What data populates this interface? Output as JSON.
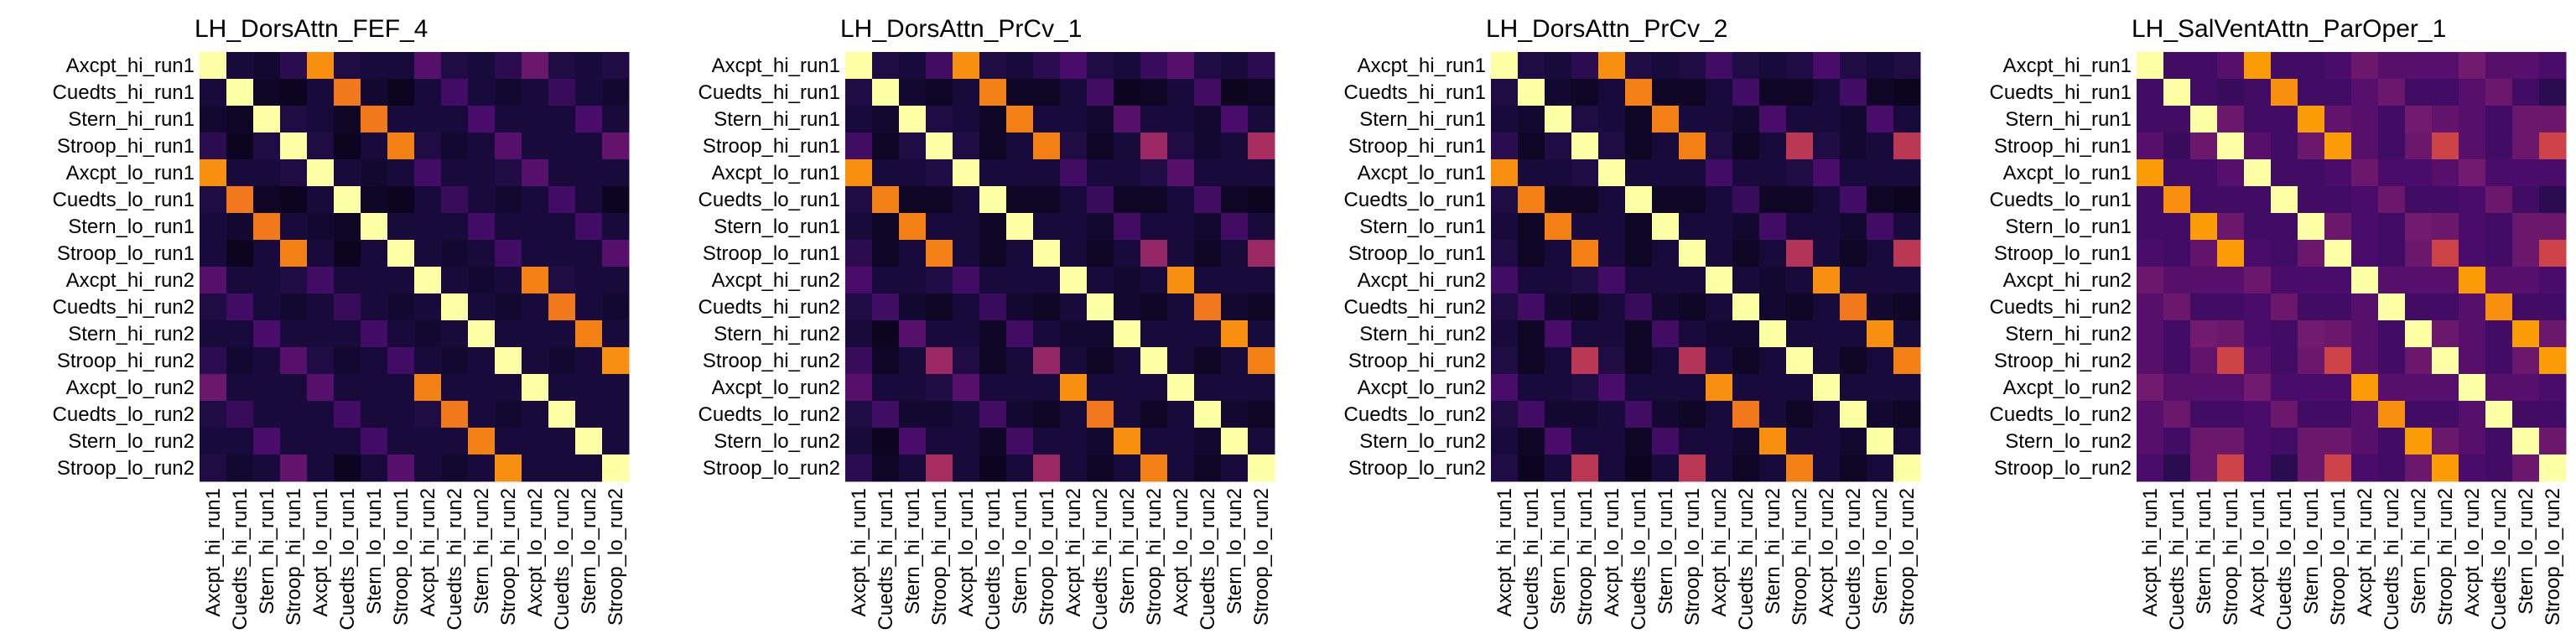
{
  "chart_data": [
    {
      "type": "heatmap",
      "title": "LH_DorsAttn_FEF_4",
      "labels": [
        "Axcpt_hi_run1",
        "Cuedts_hi_run1",
        "Stern_hi_run1",
        "Stroop_hi_run1",
        "Axcpt_lo_run1",
        "Cuedts_lo_run1",
        "Stern_lo_run1",
        "Stroop_lo_run1",
        "Axcpt_hi_run2",
        "Cuedts_hi_run2",
        "Stern_hi_run2",
        "Stroop_hi_run2",
        "Axcpt_lo_run2",
        "Cuedts_lo_run2",
        "Stern_lo_run2",
        "Stroop_lo_run2"
      ],
      "values": [
        [
          1.0,
          0.1,
          0.08,
          0.15,
          0.75,
          0.12,
          0.1,
          0.1,
          0.25,
          0.12,
          0.1,
          0.15,
          0.3,
          0.12,
          0.1,
          0.12
        ],
        [
          0.1,
          1.0,
          0.06,
          0.05,
          0.1,
          0.7,
          0.08,
          0.05,
          0.1,
          0.2,
          0.1,
          0.08,
          0.1,
          0.18,
          0.1,
          0.08
        ],
        [
          0.08,
          0.06,
          1.0,
          0.12,
          0.1,
          0.06,
          0.7,
          0.1,
          0.1,
          0.1,
          0.22,
          0.1,
          0.1,
          0.1,
          0.22,
          0.1
        ],
        [
          0.15,
          0.05,
          0.12,
          1.0,
          0.12,
          0.05,
          0.1,
          0.72,
          0.12,
          0.08,
          0.1,
          0.25,
          0.1,
          0.1,
          0.1,
          0.28
        ],
        [
          0.75,
          0.1,
          0.1,
          0.12,
          1.0,
          0.1,
          0.08,
          0.1,
          0.2,
          0.1,
          0.1,
          0.12,
          0.25,
          0.1,
          0.1,
          0.1
        ],
        [
          0.12,
          0.7,
          0.06,
          0.05,
          0.1,
          1.0,
          0.06,
          0.05,
          0.1,
          0.18,
          0.1,
          0.08,
          0.1,
          0.2,
          0.1,
          0.05
        ],
        [
          0.1,
          0.08,
          0.7,
          0.1,
          0.08,
          0.06,
          1.0,
          0.1,
          0.1,
          0.1,
          0.2,
          0.1,
          0.1,
          0.1,
          0.2,
          0.1
        ],
        [
          0.1,
          0.05,
          0.1,
          0.72,
          0.1,
          0.05,
          0.1,
          1.0,
          0.1,
          0.08,
          0.1,
          0.2,
          0.1,
          0.1,
          0.1,
          0.25
        ],
        [
          0.25,
          0.1,
          0.1,
          0.12,
          0.2,
          0.1,
          0.1,
          0.1,
          1.0,
          0.1,
          0.08,
          0.1,
          0.72,
          0.12,
          0.1,
          0.1
        ],
        [
          0.12,
          0.2,
          0.1,
          0.08,
          0.1,
          0.18,
          0.1,
          0.08,
          0.1,
          1.0,
          0.1,
          0.08,
          0.1,
          0.7,
          0.1,
          0.08
        ],
        [
          0.1,
          0.1,
          0.22,
          0.1,
          0.1,
          0.1,
          0.2,
          0.1,
          0.08,
          0.1,
          1.0,
          0.1,
          0.1,
          0.1,
          0.72,
          0.1
        ],
        [
          0.15,
          0.08,
          0.1,
          0.25,
          0.12,
          0.08,
          0.1,
          0.2,
          0.1,
          0.08,
          0.1,
          1.0,
          0.1,
          0.08,
          0.1,
          0.75
        ],
        [
          0.3,
          0.1,
          0.1,
          0.1,
          0.25,
          0.1,
          0.1,
          0.1,
          0.72,
          0.1,
          0.1,
          0.1,
          1.0,
          0.1,
          0.1,
          0.1
        ],
        [
          0.12,
          0.18,
          0.1,
          0.1,
          0.1,
          0.2,
          0.1,
          0.1,
          0.12,
          0.7,
          0.1,
          0.08,
          0.1,
          1.0,
          0.1,
          0.1
        ],
        [
          0.1,
          0.1,
          0.22,
          0.1,
          0.1,
          0.1,
          0.2,
          0.1,
          0.1,
          0.1,
          0.72,
          0.1,
          0.1,
          0.1,
          1.0,
          0.1
        ],
        [
          0.12,
          0.08,
          0.1,
          0.28,
          0.1,
          0.05,
          0.1,
          0.25,
          0.1,
          0.08,
          0.1,
          0.75,
          0.1,
          0.1,
          0.1,
          1.0
        ]
      ]
    },
    {
      "type": "heatmap",
      "title": "LH_DorsAttn_PrCv_1",
      "labels": [
        "Axcpt_hi_run1",
        "Cuedts_hi_run1",
        "Stern_hi_run1",
        "Stroop_hi_run1",
        "Axcpt_lo_run1",
        "Cuedts_lo_run1",
        "Stern_lo_run1",
        "Stroop_lo_run1",
        "Axcpt_hi_run2",
        "Cuedts_hi_run2",
        "Stern_hi_run2",
        "Stroop_hi_run2",
        "Axcpt_lo_run2",
        "Cuedts_lo_run2",
        "Stern_lo_run2",
        "Stroop_lo_run2"
      ],
      "values": [
        [
          1.0,
          0.12,
          0.1,
          0.2,
          0.75,
          0.12,
          0.1,
          0.15,
          0.22,
          0.12,
          0.1,
          0.18,
          0.25,
          0.12,
          0.1,
          0.15
        ],
        [
          0.12,
          1.0,
          0.08,
          0.06,
          0.1,
          0.72,
          0.06,
          0.06,
          0.1,
          0.2,
          0.05,
          0.06,
          0.1,
          0.2,
          0.05,
          0.06
        ],
        [
          0.1,
          0.08,
          1.0,
          0.12,
          0.1,
          0.06,
          0.72,
          0.1,
          0.1,
          0.08,
          0.25,
          0.1,
          0.1,
          0.08,
          0.22,
          0.1
        ],
        [
          0.2,
          0.06,
          0.12,
          1.0,
          0.12,
          0.06,
          0.1,
          0.72,
          0.12,
          0.06,
          0.1,
          0.42,
          0.12,
          0.08,
          0.1,
          0.45
        ],
        [
          0.75,
          0.1,
          0.1,
          0.12,
          1.0,
          0.1,
          0.1,
          0.1,
          0.2,
          0.1,
          0.1,
          0.12,
          0.25,
          0.1,
          0.1,
          0.1
        ],
        [
          0.12,
          0.72,
          0.06,
          0.06,
          0.1,
          1.0,
          0.06,
          0.06,
          0.1,
          0.18,
          0.06,
          0.06,
          0.1,
          0.2,
          0.06,
          0.05
        ],
        [
          0.1,
          0.06,
          0.72,
          0.1,
          0.1,
          0.06,
          1.0,
          0.1,
          0.1,
          0.08,
          0.2,
          0.1,
          0.1,
          0.08,
          0.2,
          0.1
        ],
        [
          0.15,
          0.06,
          0.1,
          0.72,
          0.1,
          0.06,
          0.1,
          1.0,
          0.1,
          0.06,
          0.1,
          0.4,
          0.1,
          0.06,
          0.1,
          0.42
        ],
        [
          0.22,
          0.1,
          0.1,
          0.12,
          0.2,
          0.1,
          0.1,
          0.1,
          1.0,
          0.1,
          0.08,
          0.1,
          0.75,
          0.1,
          0.1,
          0.1
        ],
        [
          0.12,
          0.2,
          0.08,
          0.06,
          0.1,
          0.18,
          0.08,
          0.06,
          0.1,
          1.0,
          0.08,
          0.06,
          0.1,
          0.7,
          0.08,
          0.06
        ],
        [
          0.1,
          0.05,
          0.25,
          0.1,
          0.1,
          0.06,
          0.2,
          0.1,
          0.08,
          0.08,
          1.0,
          0.1,
          0.1,
          0.1,
          0.75,
          0.1
        ],
        [
          0.18,
          0.06,
          0.1,
          0.42,
          0.12,
          0.06,
          0.1,
          0.4,
          0.1,
          0.06,
          0.1,
          1.0,
          0.1,
          0.06,
          0.1,
          0.72
        ],
        [
          0.25,
          0.1,
          0.1,
          0.12,
          0.25,
          0.1,
          0.1,
          0.1,
          0.75,
          0.1,
          0.1,
          0.1,
          1.0,
          0.1,
          0.1,
          0.1
        ],
        [
          0.12,
          0.2,
          0.08,
          0.08,
          0.1,
          0.2,
          0.08,
          0.06,
          0.1,
          0.7,
          0.1,
          0.06,
          0.1,
          1.0,
          0.08,
          0.06
        ],
        [
          0.1,
          0.05,
          0.22,
          0.1,
          0.1,
          0.06,
          0.2,
          0.1,
          0.1,
          0.08,
          0.75,
          0.1,
          0.1,
          0.08,
          1.0,
          0.1
        ],
        [
          0.15,
          0.06,
          0.1,
          0.45,
          0.1,
          0.05,
          0.1,
          0.42,
          0.1,
          0.06,
          0.1,
          0.72,
          0.1,
          0.06,
          0.1,
          1.0
        ]
      ]
    },
    {
      "type": "heatmap",
      "title": "LH_DorsAttn_PrCv_2",
      "labels": [
        "Axcpt_hi_run1",
        "Cuedts_hi_run1",
        "Stern_hi_run1",
        "Stroop_hi_run1",
        "Axcpt_lo_run1",
        "Cuedts_lo_run1",
        "Stern_lo_run1",
        "Stroop_lo_run1",
        "Axcpt_hi_run2",
        "Cuedts_hi_run2",
        "Stern_hi_run2",
        "Stroop_hi_run2",
        "Axcpt_lo_run2",
        "Cuedts_lo_run2",
        "Stern_lo_run2",
        "Stroop_lo_run2"
      ],
      "values": [
        [
          1.0,
          0.12,
          0.1,
          0.15,
          0.75,
          0.12,
          0.1,
          0.12,
          0.2,
          0.12,
          0.1,
          0.12,
          0.22,
          0.12,
          0.1,
          0.12
        ],
        [
          0.12,
          1.0,
          0.08,
          0.06,
          0.1,
          0.72,
          0.06,
          0.06,
          0.1,
          0.2,
          0.06,
          0.06,
          0.1,
          0.2,
          0.06,
          0.05
        ],
        [
          0.1,
          0.08,
          1.0,
          0.12,
          0.1,
          0.06,
          0.72,
          0.1,
          0.1,
          0.08,
          0.22,
          0.1,
          0.1,
          0.08,
          0.22,
          0.1
        ],
        [
          0.15,
          0.06,
          0.12,
          1.0,
          0.12,
          0.06,
          0.1,
          0.72,
          0.12,
          0.06,
          0.1,
          0.5,
          0.12,
          0.08,
          0.1,
          0.5
        ],
        [
          0.75,
          0.1,
          0.1,
          0.12,
          1.0,
          0.1,
          0.1,
          0.1,
          0.2,
          0.1,
          0.1,
          0.12,
          0.22,
          0.1,
          0.1,
          0.1
        ],
        [
          0.12,
          0.72,
          0.06,
          0.06,
          0.1,
          1.0,
          0.06,
          0.06,
          0.1,
          0.18,
          0.06,
          0.06,
          0.1,
          0.2,
          0.06,
          0.05
        ],
        [
          0.1,
          0.06,
          0.72,
          0.1,
          0.1,
          0.06,
          1.0,
          0.1,
          0.1,
          0.08,
          0.2,
          0.1,
          0.1,
          0.08,
          0.2,
          0.1
        ],
        [
          0.12,
          0.06,
          0.1,
          0.72,
          0.1,
          0.06,
          0.1,
          1.0,
          0.1,
          0.06,
          0.1,
          0.48,
          0.1,
          0.06,
          0.1,
          0.5
        ],
        [
          0.2,
          0.1,
          0.1,
          0.12,
          0.2,
          0.1,
          0.1,
          0.1,
          1.0,
          0.1,
          0.08,
          0.1,
          0.75,
          0.1,
          0.1,
          0.1
        ],
        [
          0.12,
          0.2,
          0.08,
          0.06,
          0.1,
          0.18,
          0.08,
          0.06,
          0.1,
          1.0,
          0.08,
          0.06,
          0.1,
          0.7,
          0.08,
          0.06
        ],
        [
          0.1,
          0.06,
          0.22,
          0.1,
          0.1,
          0.06,
          0.2,
          0.1,
          0.08,
          0.08,
          1.0,
          0.1,
          0.1,
          0.1,
          0.75,
          0.1
        ],
        [
          0.12,
          0.06,
          0.1,
          0.5,
          0.12,
          0.06,
          0.1,
          0.48,
          0.1,
          0.06,
          0.1,
          1.0,
          0.1,
          0.06,
          0.1,
          0.72
        ],
        [
          0.22,
          0.1,
          0.1,
          0.12,
          0.22,
          0.1,
          0.1,
          0.1,
          0.75,
          0.1,
          0.1,
          0.1,
          1.0,
          0.1,
          0.1,
          0.1
        ],
        [
          0.12,
          0.2,
          0.08,
          0.08,
          0.1,
          0.2,
          0.08,
          0.06,
          0.1,
          0.7,
          0.1,
          0.06,
          0.1,
          1.0,
          0.08,
          0.06
        ],
        [
          0.1,
          0.06,
          0.22,
          0.1,
          0.1,
          0.06,
          0.2,
          0.1,
          0.1,
          0.08,
          0.75,
          0.1,
          0.1,
          0.08,
          1.0,
          0.1
        ],
        [
          0.12,
          0.05,
          0.1,
          0.5,
          0.1,
          0.05,
          0.1,
          0.5,
          0.1,
          0.06,
          0.1,
          0.72,
          0.1,
          0.06,
          0.1,
          1.0
        ]
      ]
    },
    {
      "type": "heatmap",
      "title": "LH_SalVentAttn_ParOper_1",
      "labels": [
        "Axcpt_hi_run1",
        "Cuedts_hi_run1",
        "Stern_hi_run1",
        "Stroop_hi_run1",
        "Axcpt_lo_run1",
        "Cuedts_lo_run1",
        "Stern_lo_run1",
        "Stroop_lo_run1",
        "Axcpt_hi_run2",
        "Cuedts_hi_run2",
        "Stern_hi_run2",
        "Stroop_hi_run2",
        "Axcpt_lo_run2",
        "Cuedts_lo_run2",
        "Stern_lo_run2",
        "Stroop_lo_run2"
      ],
      "values": [
        [
          1.0,
          0.2,
          0.2,
          0.25,
          0.78,
          0.2,
          0.2,
          0.22,
          0.3,
          0.25,
          0.25,
          0.25,
          0.32,
          0.25,
          0.25,
          0.22
        ],
        [
          0.2,
          1.0,
          0.2,
          0.18,
          0.2,
          0.75,
          0.2,
          0.2,
          0.25,
          0.3,
          0.2,
          0.2,
          0.25,
          0.3,
          0.2,
          0.15
        ],
        [
          0.2,
          0.2,
          1.0,
          0.3,
          0.2,
          0.2,
          0.78,
          0.28,
          0.25,
          0.2,
          0.32,
          0.28,
          0.25,
          0.2,
          0.3,
          0.3
        ],
        [
          0.25,
          0.18,
          0.3,
          1.0,
          0.25,
          0.2,
          0.3,
          0.78,
          0.25,
          0.2,
          0.3,
          0.55,
          0.25,
          0.2,
          0.3,
          0.55
        ],
        [
          0.78,
          0.2,
          0.2,
          0.25,
          1.0,
          0.2,
          0.2,
          0.22,
          0.3,
          0.22,
          0.22,
          0.25,
          0.32,
          0.22,
          0.22,
          0.22
        ],
        [
          0.2,
          0.75,
          0.2,
          0.2,
          0.2,
          1.0,
          0.2,
          0.2,
          0.22,
          0.3,
          0.2,
          0.2,
          0.22,
          0.3,
          0.2,
          0.15
        ],
        [
          0.2,
          0.2,
          0.78,
          0.3,
          0.2,
          0.2,
          1.0,
          0.3,
          0.22,
          0.2,
          0.32,
          0.3,
          0.22,
          0.2,
          0.3,
          0.3
        ],
        [
          0.22,
          0.2,
          0.28,
          0.78,
          0.22,
          0.2,
          0.3,
          1.0,
          0.22,
          0.2,
          0.3,
          0.55,
          0.22,
          0.2,
          0.3,
          0.55
        ],
        [
          0.3,
          0.25,
          0.25,
          0.25,
          0.3,
          0.22,
          0.22,
          0.22,
          1.0,
          0.25,
          0.25,
          0.25,
          0.78,
          0.25,
          0.25,
          0.22
        ],
        [
          0.25,
          0.3,
          0.2,
          0.2,
          0.22,
          0.3,
          0.2,
          0.2,
          0.25,
          1.0,
          0.2,
          0.2,
          0.25,
          0.75,
          0.2,
          0.2
        ],
        [
          0.25,
          0.2,
          0.32,
          0.3,
          0.22,
          0.2,
          0.32,
          0.3,
          0.25,
          0.2,
          1.0,
          0.3,
          0.25,
          0.2,
          0.78,
          0.3
        ],
        [
          0.25,
          0.2,
          0.28,
          0.55,
          0.25,
          0.2,
          0.3,
          0.55,
          0.25,
          0.2,
          0.3,
          1.0,
          0.25,
          0.2,
          0.3,
          0.78
        ],
        [
          0.32,
          0.25,
          0.25,
          0.25,
          0.32,
          0.22,
          0.22,
          0.22,
          0.78,
          0.25,
          0.25,
          0.25,
          1.0,
          0.25,
          0.25,
          0.22
        ],
        [
          0.25,
          0.3,
          0.2,
          0.2,
          0.22,
          0.3,
          0.2,
          0.2,
          0.25,
          0.75,
          0.2,
          0.2,
          0.25,
          1.0,
          0.2,
          0.2
        ],
        [
          0.25,
          0.2,
          0.3,
          0.3,
          0.22,
          0.2,
          0.3,
          0.3,
          0.25,
          0.2,
          0.78,
          0.3,
          0.25,
          0.2,
          1.0,
          0.3
        ],
        [
          0.22,
          0.15,
          0.3,
          0.55,
          0.22,
          0.15,
          0.3,
          0.55,
          0.22,
          0.2,
          0.3,
          0.78,
          0.22,
          0.2,
          0.3,
          1.0
        ]
      ]
    }
  ],
  "colormap": [
    "#000004",
    "#1b0c41",
    "#4a0c6b",
    "#781c6d",
    "#a52c60",
    "#cf4446",
    "#ed6925",
    "#fb9b06",
    "#f7d13d",
    "#fcffa4"
  ]
}
